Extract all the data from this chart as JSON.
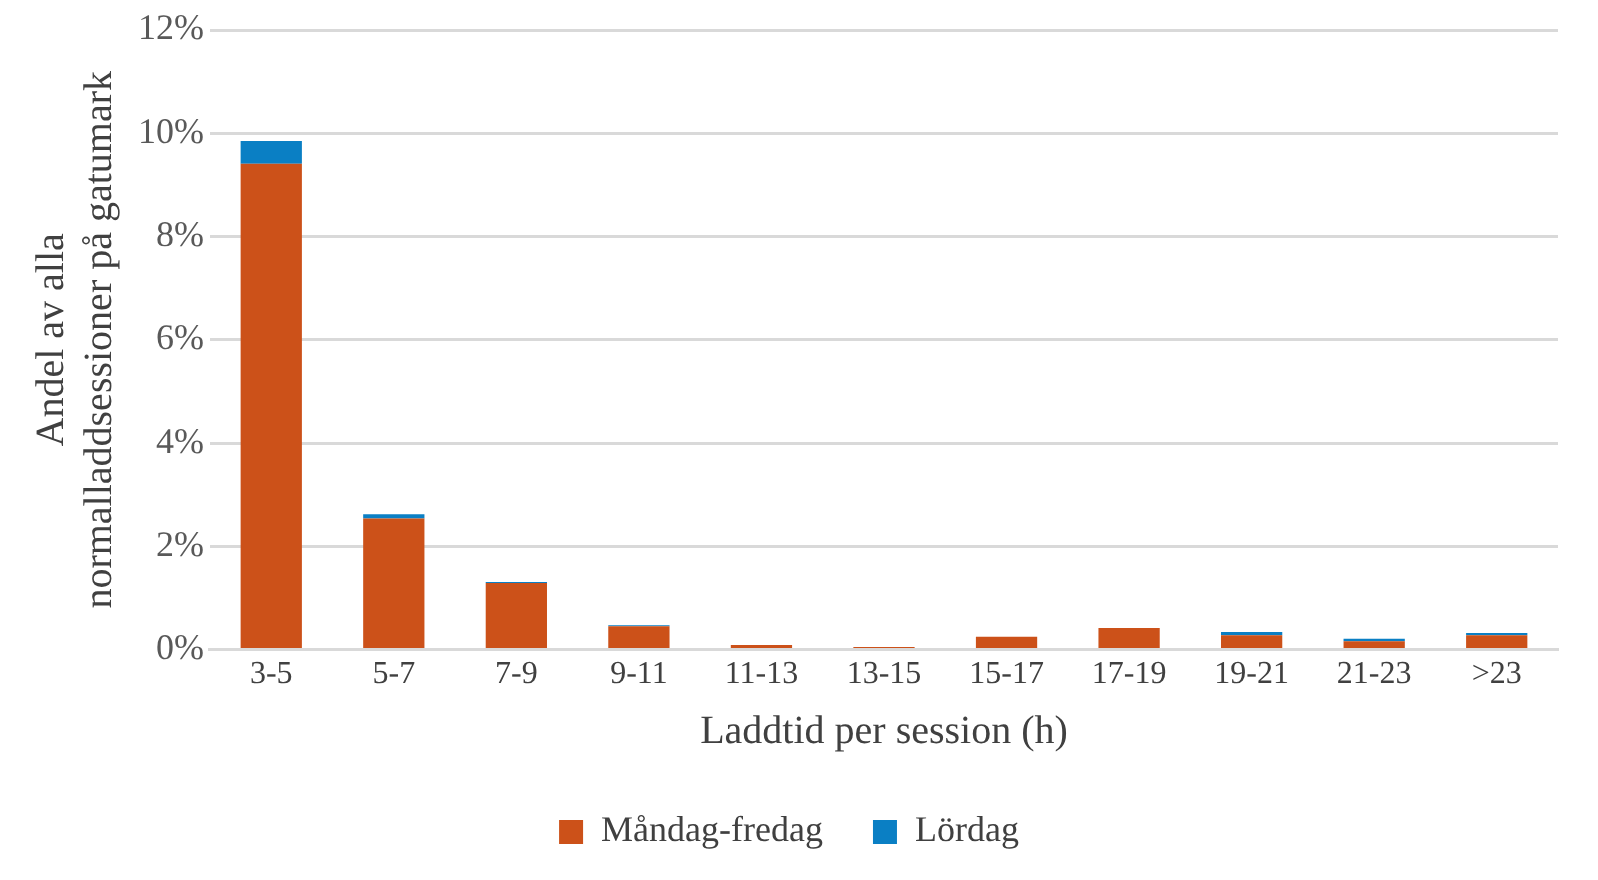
{
  "chart_data": {
    "type": "bar",
    "stacked": true,
    "xlabel": "Laddtid per session (h)",
    "ylabel": "Andel av alla normalladdsessioner på gatumark",
    "categories": [
      "3-5",
      "5-7",
      "7-9",
      "9-11",
      "11-13",
      "13-15",
      "15-17",
      "17-19",
      "19-21",
      "21-23",
      ">23"
    ],
    "series": [
      {
        "name": "Måndag-fredag",
        "color": "#cc5119",
        "values": [
          9.41,
          2.54,
          1.29,
          0.45,
          0.09,
          0.05,
          0.25,
          0.42,
          0.28,
          0.16,
          0.28
        ]
      },
      {
        "name": "Lördag",
        "color": "#0a7fc4",
        "values": [
          0.44,
          0.08,
          0.02,
          0.02,
          null,
          null,
          null,
          null,
          0.06,
          0.05,
          0.04
        ]
      }
    ],
    "ylim": [
      0,
      12
    ],
    "yticks": [
      {
        "value": 0,
        "label": "0%"
      },
      {
        "value": 2,
        "label": "2%"
      },
      {
        "value": 4,
        "label": "4%"
      },
      {
        "value": 6,
        "label": "6%"
      },
      {
        "value": 8,
        "label": "8%"
      },
      {
        "value": 10,
        "label": "10%"
      },
      {
        "value": 12,
        "label": "12%"
      }
    ],
    "grid": "y",
    "legend": "bottom"
  }
}
